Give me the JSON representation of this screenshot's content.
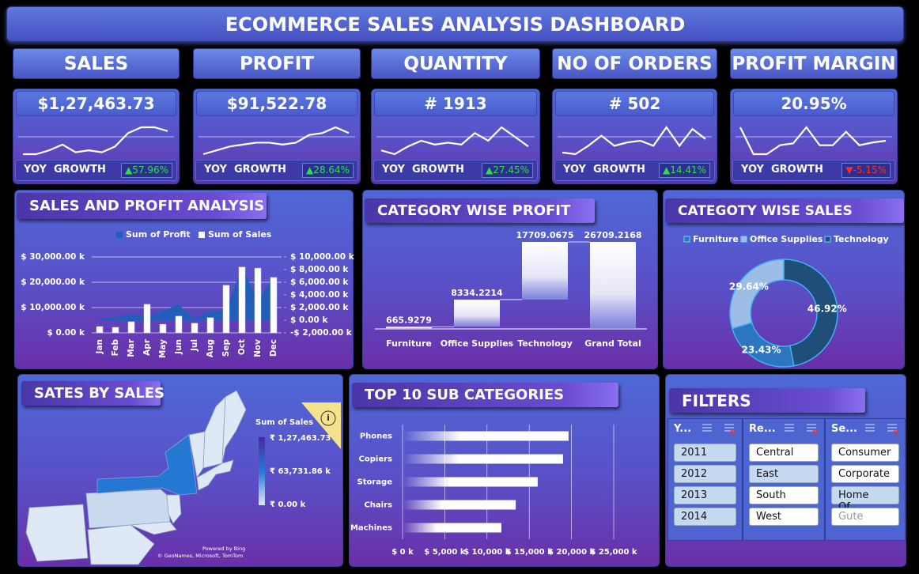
{
  "title": "ECOMMERCE SALES ANALYSIS DASHBOARD",
  "kpis": [
    {
      "label": "SALES",
      "value": "$1,27,463.73",
      "growth_label": "YOY  GROWTH",
      "growth": "▲57.96%",
      "growth_color": "#2de04a",
      "trend": [
        0,
        0,
        1,
        2.5,
        0.5,
        1,
        0.5,
        2,
        5.5,
        7,
        7,
        6
      ]
    },
    {
      "label": "PROFIT",
      "value": "$91,522.78",
      "growth_label": "YOY  GROWTH",
      "growth": "▲28.64%",
      "growth_color": "#2de04a",
      "trend": [
        1,
        2,
        3,
        3.5,
        4,
        4,
        3.5,
        4,
        6,
        6.5,
        8,
        6.5
      ]
    },
    {
      "label": "QUANTITY",
      "value": "# 1913",
      "growth_label": "YOY  GROWTH",
      "growth": "▲27.45%",
      "growth_color": "#2de04a",
      "trend": [
        1,
        0,
        2,
        3.5,
        2.5,
        3,
        2.5,
        5.5,
        3.5,
        7,
        4.5,
        2
      ]
    },
    {
      "label": "NO OF ORDERS",
      "value": "# 502",
      "growth_label": "YOY  GROWTH",
      "growth": "▲14.41%",
      "growth_color": "#2de04a",
      "trend": [
        1,
        0.5,
        3,
        6,
        3,
        4,
        4.5,
        3,
        8.5,
        3,
        8,
        5
      ]
    },
    {
      "label": "PROFIT MARGIN",
      "value": "20.95%",
      "growth_label": "YOY  GROWTH",
      "growth": "▼-5.15%",
      "growth_color": "#ff2a2a",
      "trend": [
        6,
        3,
        3,
        4,
        4.2,
        6,
        4,
        4,
        5.5,
        4,
        4.3,
        4.5
      ]
    }
  ],
  "chart_data": [
    {
      "type": "combo",
      "title": "SALES AND PROFIT ANALYSIS",
      "categories": [
        "Jan",
        "Feb",
        "Mar",
        "Apr",
        "May",
        "Jun",
        "Jul",
        "Aug",
        "Sep",
        "Oct",
        "Nov",
        "Dec"
      ],
      "series": [
        {
          "name": "Sum of Profit",
          "type": "area",
          "axis": "y2",
          "color": "#1f5fb8",
          "values": [
            200,
            500,
            1000,
            500,
            1500,
            2500,
            300,
            1500,
            1500,
            8500,
            3000,
            7000
          ]
        },
        {
          "name": "Sum of Sales",
          "type": "bar",
          "color": "#ffffff",
          "values": [
            2500,
            2200,
            4400,
            11300,
            3400,
            6600,
            3800,
            6000,
            18800,
            26000,
            25600,
            21900
          ]
        }
      ],
      "ylim": [
        0,
        30000
      ],
      "yticks": [
        {
          "value": 0,
          "label": "$ 0.00 k"
        },
        {
          "value": 10000,
          "label": "$ 10,000.00 k"
        },
        {
          "value": 20000,
          "label": "$ 20,000.00 k"
        },
        {
          "value": 30000,
          "label": "$ 30,000.00 k"
        }
      ],
      "y2lim": [
        -2000,
        10000
      ],
      "y2ticks": [
        {
          "value": -2000,
          "label": "-$ 2,000.00 k"
        },
        {
          "value": 0,
          "label": "$ 0.00 k"
        },
        {
          "value": 2000,
          "label": "$ 2,000.00 k"
        },
        {
          "value": 4000,
          "label": "$ 4,000.00 k"
        },
        {
          "value": 6000,
          "label": "$ 6,000.00 k"
        },
        {
          "value": 8000,
          "label": "$ 8,000.00 k"
        },
        {
          "value": 10000,
          "label": "$ 10,000.00 k"
        }
      ],
      "grid": true
    },
    {
      "type": "waterfall",
      "title": "CATEGORY WISE PROFIT",
      "categories": [
        "Furniture",
        "Office Supplies",
        "Technology",
        "Grand Total"
      ],
      "values": [
        665.9279,
        8334.2214,
        17709.0675,
        26709.2168
      ],
      "color": "#ffffff",
      "show_total": true
    },
    {
      "type": "donut",
      "title": "CATEGOTY WISE SALES",
      "categories": [
        "Furniture",
        "Office Supplies",
        "Technology"
      ],
      "values": [
        23.43,
        29.64,
        46.92
      ],
      "value_labels": [
        "23.43%",
        "29.64%",
        "46.92%"
      ],
      "colors": [
        "#2e75c0",
        "#9dbde6",
        "#1f4e79"
      ]
    },
    {
      "type": "map",
      "title": "SATES BY SALES",
      "legend_title": "Sum of Sales",
      "legend_labels": [
        "₹ 1,27,463.73 k",
        "₹ 63,731.86 k",
        "₹ 0.00 k"
      ],
      "scale_colors": [
        "#dfe8f5",
        "#2478d4",
        "#4a2aa0"
      ],
      "info": "i",
      "credits": [
        "Powered by Bing",
        "© GeoNames, Microsoft, TomTom"
      ]
    },
    {
      "type": "hbar",
      "title": "TOP 10 SUB CATEGORIES",
      "categories": [
        "Phones",
        "Copiers",
        "Storage",
        "Chairs",
        "Machines"
      ],
      "values": [
        19650,
        19000,
        16000,
        13400,
        11700
      ],
      "color": "#ffffff",
      "xlim": [
        0,
        25000
      ],
      "xticks": [
        {
          "value": 0,
          "label": "$ 0 k"
        },
        {
          "value": 5000,
          "label": "$ 5,000 k"
        },
        {
          "value": 10000,
          "label": "$ 10,000 k"
        },
        {
          "value": 15000,
          "label": "$ 15,000 k"
        },
        {
          "value": 20000,
          "label": "$ 20,000 k"
        },
        {
          "value": 25000,
          "label": "$ 25,000 k"
        }
      ],
      "grid": true
    }
  ],
  "filters": {
    "title": "FILTERS",
    "slicers": [
      {
        "header": "Y...",
        "items": [
          "2011",
          "2012",
          "2013",
          "2014"
        ],
        "states": [
          "selected",
          "selected",
          "selected",
          "selected"
        ]
      },
      {
        "header": "Re...",
        "items": [
          "Central",
          "East",
          "South",
          "West"
        ],
        "states": [
          "unselected",
          "selected",
          "unselected",
          "unselected"
        ]
      },
      {
        "header": "Se...",
        "items": [
          "Consumer",
          "Corporate",
          "Home Of...",
          "Gute"
        ],
        "states": [
          "unselected",
          "unselected",
          "selected",
          "empty"
        ]
      }
    ]
  }
}
